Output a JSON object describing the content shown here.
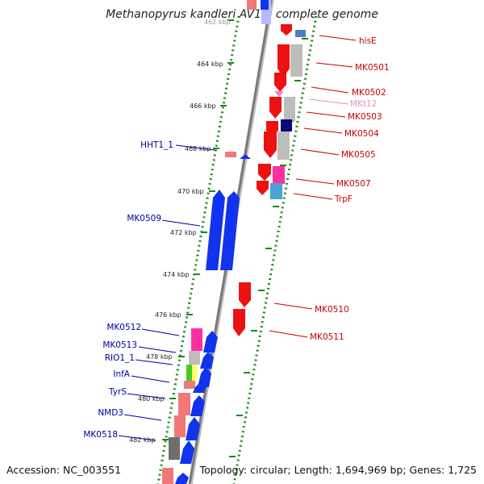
{
  "title": "Methanopyrus kandleri AV19, complete genome",
  "footer": {
    "accession": "Accession: NC_003551",
    "summary": "Topology: circular; Length: 1,694,969 bp; Genes: 1,725"
  },
  "colors": {
    "background": "#ffffff",
    "ruler_ticks": "#1a8a1a",
    "backbone": "#9a9a9a",
    "label_forward": "#0000a0",
    "label_reverse": "#c80000",
    "label_faded": "#e090c0",
    "tick_label": "#222222"
  },
  "ruler": {
    "unit": "kbp",
    "labels": [
      "462 kbp",
      "464 kbp",
      "466 kbp",
      "468 kbp",
      "470 kbp",
      "472 kbp",
      "474 kbp",
      "476 kbp",
      "478 kbp",
      "480 kbp",
      "482 kbp"
    ]
  },
  "genes": {
    "reverse_strand": [
      {
        "label": "hisE",
        "color": "#ee1111",
        "style": "normal"
      },
      {
        "label": "MK0501",
        "color": "#ee1111",
        "style": "normal"
      },
      {
        "label": "MK0502",
        "color": "#ee1111",
        "style": "normal"
      },
      {
        "label": "MKt12",
        "color": "#f080c8",
        "style": "faded"
      },
      {
        "label": "MK0503",
        "color": "#ee1111",
        "style": "normal"
      },
      {
        "label": "MK0504",
        "color": "#ee1111",
        "style": "normal"
      },
      {
        "label": "MK0505",
        "color": "#ee1111",
        "style": "normal"
      },
      {
        "label": "MK0507",
        "color": "#ee1111",
        "style": "normal"
      },
      {
        "label": "TrpF",
        "color": "#ee1111",
        "style": "normal"
      },
      {
        "label": "MK0510",
        "color": "#ee1111",
        "style": "normal"
      },
      {
        "label": "MK0511",
        "color": "#ee1111",
        "style": "normal"
      }
    ],
    "forward_strand": [
      {
        "label": "HHT1_1",
        "color": "#1133ee"
      },
      {
        "label": "MK0509",
        "color": "#1133ee"
      },
      {
        "label": "MK0512",
        "color": "#1133ee"
      },
      {
        "label": "MK0513",
        "color": "#1133ee"
      },
      {
        "label": "RIO1_1",
        "color": "#1133ee"
      },
      {
        "label": "InfA",
        "color": "#1133ee"
      },
      {
        "label": "TyrS",
        "color": "#1133ee"
      },
      {
        "label": "NMD3",
        "color": "#1133ee"
      },
      {
        "label": "MK0518",
        "color": "#1133ee"
      }
    ]
  },
  "cog_colors": [
    "#ff2fa0",
    "#bdbdbd",
    "#4aa3d6",
    "#0a0a7a",
    "#44cc22",
    "#f07878",
    "#6e6e6e",
    "#b8b8ff"
  ]
}
